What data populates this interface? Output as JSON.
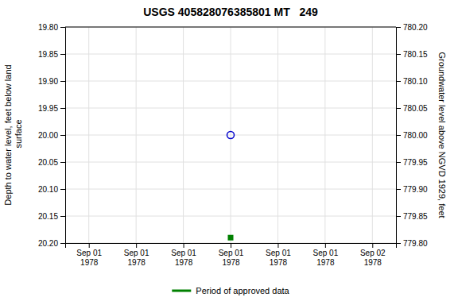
{
  "chart_data": {
    "type": "scatter",
    "title": "USGS 405828076385801 MT   249",
    "y_label": "Depth to water level, feet below land\n surface",
    "y2_label": "Groundwater level above NGVD 1929, feet",
    "categories": [
      "Sep 01\n1978",
      "Sep 01\n1978",
      "Sep 01\n1978",
      "Sep 01\n1978",
      "Sep 01\n1978",
      "Sep 01\n1978",
      "Sep 02\n1978"
    ],
    "series": [
      {
        "color": "#0000cc",
        "marker": "circle",
        "values": [
          null,
          null,
          null,
          20.0,
          null,
          null,
          null
        ]
      },
      {
        "name": "Period of approved data",
        "color": "#008000",
        "marker": "square",
        "values": [
          null,
          null,
          null,
          20.19,
          null,
          null,
          null
        ]
      }
    ],
    "ylim": [
      20.2,
      19.8
    ],
    "yticks": [
      {
        "value": 19.8,
        "label": "19.80"
      },
      {
        "value": 19.85,
        "label": "19.85"
      },
      {
        "value": 19.9,
        "label": "19.90"
      },
      {
        "value": 19.95,
        "label": "19.95"
      },
      {
        "value": 20.0,
        "label": "20.00"
      },
      {
        "value": 20.05,
        "label": "20.05"
      },
      {
        "value": 20.1,
        "label": "20.10"
      },
      {
        "value": 20.15,
        "label": "20.15"
      },
      {
        "value": 20.2,
        "label": "20.20"
      }
    ],
    "y2lim": [
      779.8,
      780.2
    ],
    "y2ticks": [
      {
        "value": 780.2,
        "label": "780.20"
      },
      {
        "value": 780.15,
        "label": "780.15"
      },
      {
        "value": 780.1,
        "label": "780.10"
      },
      {
        "value": 780.05,
        "label": "780.05"
      },
      {
        "value": 780.0,
        "label": "780.00"
      },
      {
        "value": 779.95,
        "label": "779.95"
      },
      {
        "value": 779.9,
        "label": "779.90"
      },
      {
        "value": 779.85,
        "label": "779.85"
      },
      {
        "value": 779.8,
        "label": "779.80"
      }
    ],
    "grid": true,
    "legend": "bottom"
  }
}
